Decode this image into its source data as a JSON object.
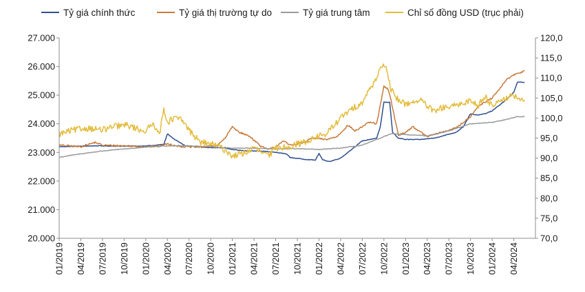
{
  "chart_data": {
    "type": "line",
    "title": "",
    "legend": [
      {
        "name": "Tỷ giá chính thức",
        "color": "#2e4e8e"
      },
      {
        "name": "Tỷ giá thị trường tự do",
        "color": "#c77a3a"
      },
      {
        "name": "Tỷ giá trung tâm",
        "color": "#9a9a9a"
      },
      {
        "name": "Chỉ số đồng USD (trục phải)",
        "color": "#e3bb3a"
      }
    ],
    "legend_position": "top",
    "y_left": {
      "min": 20000,
      "max": 27000,
      "ticks": [
        "20.000",
        "21.000",
        "22.000",
        "23.000",
        "24.000",
        "25.000",
        "26.000",
        "27.000"
      ]
    },
    "y_right": {
      "min": 70,
      "max": 120,
      "ticks": [
        "70,0",
        "75,0",
        "80,0",
        "85,0",
        "90,0",
        "95,0",
        "100,0",
        "105,0",
        "110,0",
        "115,0",
        "120,0"
      ]
    },
    "x_range": [
      0,
      66
    ],
    "x_ticks": [
      {
        "pos": 0,
        "label": "01/2019"
      },
      {
        "pos": 3,
        "label": "04/2019"
      },
      {
        "pos": 6,
        "label": "07/2019"
      },
      {
        "pos": 9,
        "label": "10/2019"
      },
      {
        "pos": 12,
        "label": "01/2020"
      },
      {
        "pos": 15,
        "label": "04/2020"
      },
      {
        "pos": 18,
        "label": "07/2020"
      },
      {
        "pos": 21,
        "label": "10/2020"
      },
      {
        "pos": 24,
        "label": "01/2021"
      },
      {
        "pos": 27,
        "label": "04/2021"
      },
      {
        "pos": 30,
        "label": "07/2021"
      },
      {
        "pos": 33,
        "label": "10/2021"
      },
      {
        "pos": 36,
        "label": "01/2022"
      },
      {
        "pos": 39,
        "label": "04/2022"
      },
      {
        "pos": 42,
        "label": "07/2022"
      },
      {
        "pos": 45,
        "label": "10/2022"
      },
      {
        "pos": 48,
        "label": "01/2023"
      },
      {
        "pos": 51,
        "label": "04/2023"
      },
      {
        "pos": 54,
        "label": "07/2023"
      },
      {
        "pos": 57,
        "label": "10/2023"
      },
      {
        "pos": 60,
        "label": "01/2024"
      },
      {
        "pos": 63,
        "label": "04/2024"
      }
    ],
    "series": [
      {
        "name": "Tỷ giá chính thức",
        "axis": "left",
        "color": "#2e4e8e",
        "jitter": 10,
        "points": [
          [
            0,
            23200
          ],
          [
            2,
            23210
          ],
          [
            5,
            23230
          ],
          [
            8,
            23220
          ],
          [
            11,
            23220
          ],
          [
            13,
            23240
          ],
          [
            14.5,
            23280
          ],
          [
            15,
            23650
          ],
          [
            16,
            23450
          ],
          [
            17.5,
            23230
          ],
          [
            20,
            23180
          ],
          [
            23,
            23150
          ],
          [
            24,
            23100
          ],
          [
            26,
            23050
          ],
          [
            28,
            23050
          ],
          [
            30,
            23000
          ],
          [
            31.5,
            22950
          ],
          [
            32,
            22820
          ],
          [
            34,
            22760
          ],
          [
            35.5,
            22730
          ],
          [
            36,
            22960
          ],
          [
            36.5,
            22740
          ],
          [
            37.5,
            22680
          ],
          [
            39,
            22800
          ],
          [
            40,
            23000
          ],
          [
            42,
            23400
          ],
          [
            43,
            23450
          ],
          [
            44,
            23500
          ],
          [
            44.5,
            23900
          ],
          [
            45,
            24750
          ],
          [
            45.8,
            24750
          ],
          [
            46.2,
            23700
          ],
          [
            47,
            23500
          ],
          [
            48,
            23450
          ],
          [
            50,
            23450
          ],
          [
            52,
            23500
          ],
          [
            55,
            23700
          ],
          [
            56,
            23900
          ],
          [
            57,
            24350
          ],
          [
            58,
            24300
          ],
          [
            59,
            24350
          ],
          [
            60,
            24450
          ],
          [
            61,
            24650
          ],
          [
            62,
            24850
          ],
          [
            63,
            25100
          ],
          [
            63.5,
            25450
          ],
          [
            64.5,
            25450
          ]
        ]
      },
      {
        "name": "Tỷ giá thị trường tự do",
        "axis": "left",
        "color": "#c77a3a",
        "jitter": 30,
        "points": [
          [
            0,
            23250
          ],
          [
            3,
            23200
          ],
          [
            5,
            23350
          ],
          [
            6,
            23250
          ],
          [
            9,
            23230
          ],
          [
            12,
            23200
          ],
          [
            14,
            23220
          ],
          [
            15,
            23300
          ],
          [
            17,
            23200
          ],
          [
            20,
            23180
          ],
          [
            22,
            23250
          ],
          [
            23,
            23500
          ],
          [
            24,
            23900
          ],
          [
            25,
            23700
          ],
          [
            26.5,
            23550
          ],
          [
            28,
            23200
          ],
          [
            29,
            23100
          ],
          [
            30,
            23200
          ],
          [
            31,
            23400
          ],
          [
            32,
            23250
          ],
          [
            34,
            23350
          ],
          [
            35,
            23500
          ],
          [
            37,
            23450
          ],
          [
            38.5,
            23550
          ],
          [
            40,
            23950
          ],
          [
            41,
            23750
          ],
          [
            42,
            23900
          ],
          [
            43,
            24050
          ],
          [
            44,
            24000
          ],
          [
            45,
            25300
          ],
          [
            45.6,
            25200
          ],
          [
            46,
            24800
          ],
          [
            47,
            23600
          ],
          [
            48,
            23700
          ],
          [
            49,
            23900
          ],
          [
            51,
            23550
          ],
          [
            53,
            23700
          ],
          [
            55,
            23850
          ],
          [
            57,
            24250
          ],
          [
            58,
            24600
          ],
          [
            60,
            24900
          ],
          [
            61,
            25200
          ],
          [
            62,
            25550
          ],
          [
            63,
            25700
          ],
          [
            64.5,
            25850
          ]
        ]
      },
      {
        "name": "Tỷ giá trung tâm",
        "axis": "left",
        "color": "#9a9a9a",
        "jitter": 12,
        "points": [
          [
            0,
            22830
          ],
          [
            3,
            22950
          ],
          [
            6,
            23050
          ],
          [
            9,
            23120
          ],
          [
            12,
            23180
          ],
          [
            15,
            23230
          ],
          [
            18,
            23230
          ],
          [
            21,
            23200
          ],
          [
            24,
            23150
          ],
          [
            27,
            23150
          ],
          [
            30,
            23120
          ],
          [
            33,
            23130
          ],
          [
            36,
            23100
          ],
          [
            39,
            23150
          ],
          [
            42,
            23250
          ],
          [
            44,
            23450
          ],
          [
            46,
            23650
          ],
          [
            48,
            23620
          ],
          [
            51,
            23580
          ],
          [
            54,
            23750
          ],
          [
            57,
            24000
          ],
          [
            60,
            24050
          ],
          [
            62,
            24150
          ],
          [
            63.5,
            24250
          ],
          [
            64.5,
            24250
          ]
        ]
      },
      {
        "name": "Chỉ số đồng USD (trục phải)",
        "axis": "right",
        "color": "#e3bb3a",
        "jitter": 0.8,
        "points": [
          [
            0,
            96
          ],
          [
            2,
            97
          ],
          [
            4,
            97.5
          ],
          [
            6,
            97
          ],
          [
            8,
            98
          ],
          [
            9.5,
            98.2
          ],
          [
            11,
            97.2
          ],
          [
            12,
            96.8
          ],
          [
            13,
            98.5
          ],
          [
            14,
            96.5
          ],
          [
            14.5,
            102.5
          ],
          [
            15,
            99
          ],
          [
            16,
            100
          ],
          [
            17,
            99.5
          ],
          [
            18,
            97
          ],
          [
            19.5,
            94
          ],
          [
            21,
            93.5
          ],
          [
            22,
            93
          ],
          [
            23,
            92
          ],
          [
            24,
            90.5
          ],
          [
            26,
            91.5
          ],
          [
            27,
            92.5
          ],
          [
            28,
            91.5
          ],
          [
            29,
            90.5
          ],
          [
            30,
            92.5
          ],
          [
            32,
            93
          ],
          [
            34,
            94
          ],
          [
            36,
            95.5
          ],
          [
            37,
            96
          ],
          [
            39,
            100
          ],
          [
            40,
            101.5
          ],
          [
            42,
            104
          ],
          [
            43,
            107
          ],
          [
            43.8,
            109.5
          ],
          [
            44.3,
            111.5
          ],
          [
            44.8,
            113.5
          ],
          [
            45.3,
            112
          ],
          [
            46,
            107
          ],
          [
            47,
            104.5
          ],
          [
            48,
            103.5
          ],
          [
            50,
            104.5
          ],
          [
            52,
            101.5
          ],
          [
            53,
            102.5
          ],
          [
            55,
            103
          ],
          [
            57,
            104.5
          ],
          [
            58,
            103
          ],
          [
            59,
            105.5
          ],
          [
            60,
            103
          ],
          [
            61,
            104.5
          ],
          [
            62,
            105
          ],
          [
            63,
            105.5
          ],
          [
            64,
            104.5
          ],
          [
            64.5,
            104.5
          ]
        ]
      }
    ]
  }
}
